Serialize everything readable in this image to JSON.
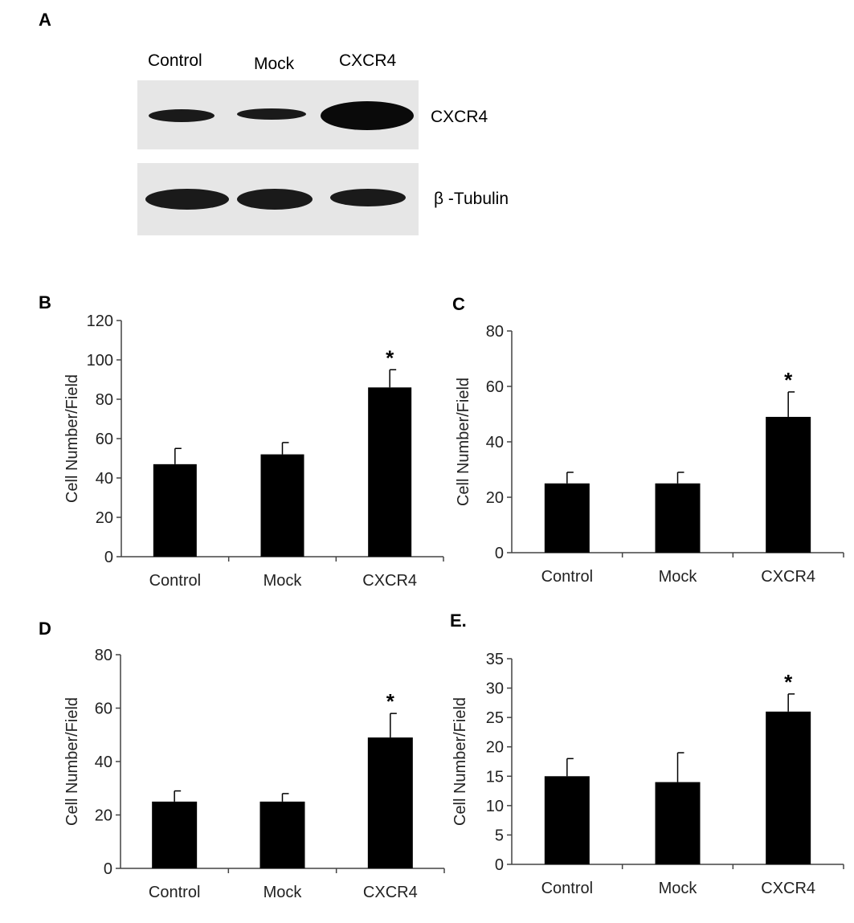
{
  "panel_a": {
    "label": "A",
    "lanes": [
      "Control",
      "Mock",
      "CXCR4"
    ],
    "proteins": [
      "CXCR4",
      "β -Tubulin"
    ],
    "band_intensity": [
      [
        0.35,
        0.32,
        1.0
      ],
      [
        0.9,
        0.85,
        0.75
      ]
    ]
  },
  "chart_data": [
    {
      "panel": "B",
      "type": "bar",
      "categories": [
        "Control",
        "Mock",
        "CXCR4"
      ],
      "values": [
        47,
        52,
        86
      ],
      "errors": [
        8,
        6,
        9
      ],
      "significance": [
        "",
        "",
        "*"
      ],
      "ylabel": "Cell Number/Field",
      "ylim": [
        0,
        120
      ],
      "yticks": [
        0,
        20,
        40,
        60,
        80,
        100,
        120
      ],
      "grid": false
    },
    {
      "panel": "C",
      "type": "bar",
      "categories": [
        "Control",
        "Mock",
        "CXCR4"
      ],
      "values": [
        25,
        25,
        49
      ],
      "errors": [
        4,
        4,
        9
      ],
      "significance": [
        "",
        "",
        "*"
      ],
      "ylabel": "Cell Number/Field",
      "ylim": [
        0,
        80
      ],
      "yticks": [
        0,
        20,
        40,
        60,
        80
      ],
      "grid": false
    },
    {
      "panel": "D",
      "type": "bar",
      "categories": [
        "Control",
        "Mock",
        "CXCR4"
      ],
      "values": [
        25,
        25,
        49
      ],
      "errors": [
        4,
        3,
        9
      ],
      "significance": [
        "",
        "",
        "*"
      ],
      "ylabel": "Cell Number/Field",
      "ylim": [
        0,
        80
      ],
      "yticks": [
        0,
        20,
        40,
        60,
        80
      ],
      "grid": false
    },
    {
      "panel": "E.",
      "type": "bar",
      "categories": [
        "Control",
        "Mock",
        "CXCR4"
      ],
      "values": [
        15,
        14,
        26
      ],
      "errors": [
        3,
        5,
        3
      ],
      "significance": [
        "",
        "",
        "*"
      ],
      "ylabel": "Cell Number/Field",
      "ylim": [
        0,
        35
      ],
      "yticks": [
        0,
        5,
        10,
        15,
        20,
        25,
        30,
        35
      ],
      "grid": false
    }
  ]
}
